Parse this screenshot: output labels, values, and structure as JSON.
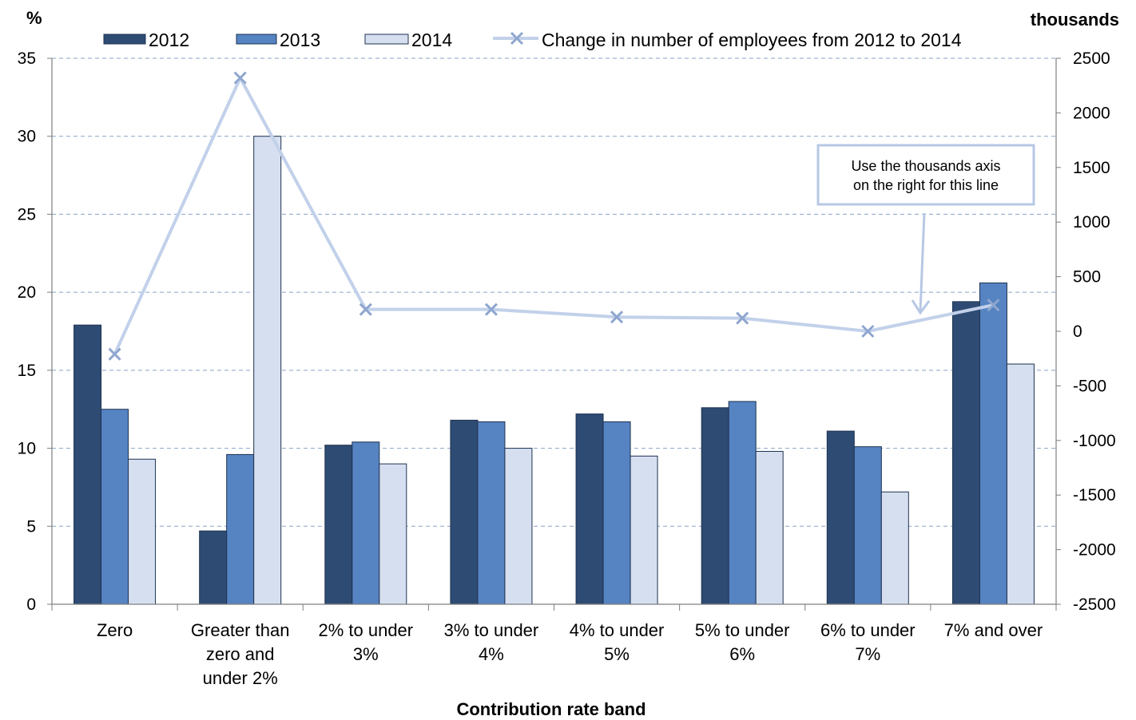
{
  "chart_data": {
    "type": "bar",
    "title": "",
    "xlabel": "Contribution rate band",
    "ylabel_left": "%",
    "ylabel_right": "thousands",
    "ylim_left": [
      0,
      35
    ],
    "yticks_left": [
      "0",
      "5",
      "10",
      "15",
      "20",
      "25",
      "30",
      "35"
    ],
    "ylim_right": [
      -2500,
      2500
    ],
    "yticks_right": [
      "-2500",
      "-2000",
      "-1500",
      "-1000",
      "-500",
      "0",
      "500",
      "1000",
      "1500",
      "2000",
      "2500"
    ],
    "grid": true,
    "legend_position": "top",
    "categories": [
      [
        "Zero"
      ],
      [
        "Greater than",
        "zero and",
        "under 2%"
      ],
      [
        "2% to under",
        "3%"
      ],
      [
        "3% to under",
        "4%"
      ],
      [
        "4% to under",
        "5%"
      ],
      [
        "5% to under",
        "6%"
      ],
      [
        "6% to under",
        "7%"
      ],
      [
        "7% and over"
      ]
    ],
    "series": [
      {
        "name": "2012",
        "type": "bar",
        "axis": "left",
        "color": "#2e4b73",
        "values": [
          17.9,
          4.7,
          10.2,
          11.8,
          12.2,
          12.6,
          11.1,
          19.4
        ]
      },
      {
        "name": "2013",
        "type": "bar",
        "axis": "left",
        "color": "#5683c2",
        "values": [
          12.5,
          9.6,
          10.4,
          11.7,
          11.7,
          13.0,
          10.1,
          20.6
        ]
      },
      {
        "name": "2014",
        "type": "bar",
        "axis": "left",
        "color": "#d6dff0",
        "values": [
          9.3,
          30.0,
          9.0,
          10.0,
          9.5,
          9.8,
          7.2,
          15.4
        ]
      },
      {
        "name": "Change in number of employees from 2012 to 2014",
        "type": "line",
        "axis": "right",
        "color": "#c2d1ea",
        "values": [
          -210,
          2320,
          200,
          200,
          130,
          120,
          0,
          240
        ]
      }
    ],
    "annotation": [
      "Use the thousands axis",
      "on the right for this line"
    ]
  }
}
